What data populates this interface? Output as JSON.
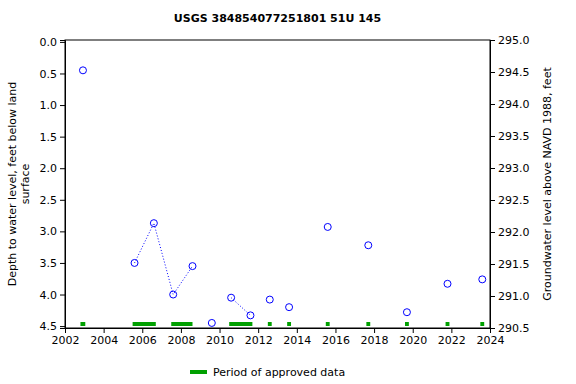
{
  "chart_data": {
    "type": "scatter",
    "title": "USGS 384854077251801 51U 145",
    "ylabel": [
      "Depth to water level, feet below land",
      "surface"
    ],
    "y2label": "Groundwater level above NAVD 1988, feet",
    "x": [
      2002.93,
      2005.6,
      2006.6,
      2007.6,
      2008.6,
      2009.6,
      2010.6,
      2011.6,
      2012.6,
      2013.6,
      2015.6,
      2017.7,
      2019.7,
      2021.8,
      2023.6
    ],
    "series": [
      {
        "type": "scatter",
        "marker": "circle-open",
        "color": "#0000ff",
        "values": [
          0.45,
          3.5,
          2.87,
          4.0,
          3.55,
          4.45,
          4.05,
          4.33,
          4.08,
          4.2,
          2.93,
          3.22,
          4.28,
          3.83,
          3.76
        ]
      },
      {
        "type": "line",
        "line_style": "dotted",
        "color": "#0000ff",
        "values": [
          null,
          3.5,
          2.87,
          4.0,
          3.55,
          null,
          4.05,
          4.33,
          null,
          null,
          null,
          null,
          null,
          null,
          null
        ]
      }
    ],
    "approved_periods": {
      "name": "Period of approved data",
      "color": "#00a000",
      "ranges": [
        [
          2002.8,
          2003.05
        ],
        [
          2005.5,
          2006.7
        ],
        [
          2007.5,
          2008.6
        ],
        [
          2010.5,
          2011.7
        ],
        [
          2012.5,
          2012.7
        ],
        [
          2013.5,
          2013.7
        ],
        [
          2015.5,
          2015.7
        ],
        [
          2017.6,
          2017.8
        ],
        [
          2019.6,
          2019.8
        ],
        [
          2021.7,
          2021.9
        ],
        [
          2023.5,
          2023.7
        ]
      ]
    },
    "xlim": [
      2002,
      2024
    ],
    "xticks": [
      2002,
      2004,
      2006,
      2008,
      2010,
      2012,
      2014,
      2016,
      2018,
      2020,
      2022,
      2024
    ],
    "ylim": [
      -0.03,
      4.53
    ],
    "yticks": [
      {
        "value": 0,
        "label": "0.0"
      },
      0.5,
      {
        "value": 1,
        "label": "1.0"
      },
      1.5,
      {
        "value": 2,
        "label": "2.0"
      },
      2.5,
      {
        "value": 3,
        "label": "3.0"
      },
      3.5,
      {
        "value": 4,
        "label": "4.0"
      },
      4.5
    ],
    "y2lim": [
      290.5,
      295.0
    ],
    "y2ticks": [
      290.5,
      {
        "value": 291,
        "label": "291.0"
      },
      291.5,
      {
        "value": 292,
        "label": "292.0"
      },
      292.5,
      {
        "value": 293,
        "label": "293.0"
      },
      293.5,
      {
        "value": 294,
        "label": "294.0"
      },
      294.5,
      {
        "value": 295,
        "label": "295.0"
      }
    ],
    "legend": "bottom",
    "grid": false
  }
}
